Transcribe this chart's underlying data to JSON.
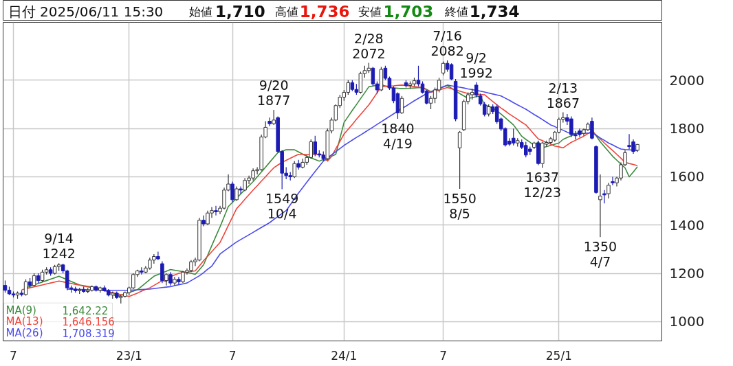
{
  "chart_data": {
    "type": "candlestick",
    "categories": [
      null,
      null,
      "7",
      null,
      null,
      null,
      null,
      null,
      null,
      null,
      null,
      null,
      null,
      null,
      null,
      null,
      null,
      null,
      null,
      null,
      null,
      null,
      null,
      null,
      null,
      null,
      null,
      null,
      null,
      null,
      "23/1",
      null,
      null,
      null,
      null,
      null,
      null,
      null,
      null,
      null,
      null,
      null,
      null,
      null,
      null,
      null,
      null,
      null,
      null,
      null,
      null,
      null,
      null,
      null,
      null,
      "7",
      null,
      null,
      null,
      null,
      null,
      null,
      null,
      null,
      null,
      null,
      null,
      null,
      null,
      null,
      null,
      null,
      null,
      null,
      null,
      null,
      null,
      null,
      null,
      null,
      null,
      null,
      "24/1",
      null,
      null,
      null,
      null,
      null,
      null,
      null,
      null,
      null,
      null,
      null,
      null,
      null,
      null,
      null,
      null,
      null,
      null,
      null,
      null,
      null,
      null,
      null,
      "7",
      null,
      null,
      null,
      null,
      null,
      null,
      null,
      null,
      null,
      null,
      null,
      null,
      null,
      null,
      null,
      null,
      null,
      null,
      null,
      null,
      null,
      null,
      null,
      null,
      null,
      null,
      null,
      "25/1",
      null,
      null,
      null,
      null,
      null,
      null,
      null,
      null,
      null,
      null,
      null,
      null,
      null,
      null,
      null,
      null,
      null,
      null,
      null
    ],
    "ohlc": [
      [
        1150,
        1170,
        1120,
        1130
      ],
      [
        1130,
        1145,
        1110,
        1115
      ],
      [
        1115,
        1125,
        1100,
        1110
      ],
      [
        1110,
        1125,
        1095,
        1118
      ],
      [
        1118,
        1130,
        1105,
        1112
      ],
      [
        1112,
        1175,
        1108,
        1165
      ],
      [
        1165,
        1180,
        1140,
        1150
      ],
      [
        1150,
        1200,
        1145,
        1190
      ],
      [
        1190,
        1200,
        1160,
        1170
      ],
      [
        1170,
        1215,
        1165,
        1205
      ],
      [
        1205,
        1225,
        1195,
        1215
      ],
      [
        1215,
        1225,
        1190,
        1200
      ],
      [
        1200,
        1235,
        1195,
        1228
      ],
      [
        1228,
        1242,
        1210,
        1235
      ],
      [
        1235,
        1240,
        1200,
        1210
      ],
      [
        1210,
        1215,
        1130,
        1140
      ],
      [
        1140,
        1150,
        1120,
        1135
      ],
      [
        1135,
        1145,
        1120,
        1128
      ],
      [
        1128,
        1140,
        1115,
        1132
      ],
      [
        1132,
        1145,
        1120,
        1125
      ],
      [
        1125,
        1140,
        1118,
        1130
      ],
      [
        1130,
        1150,
        1125,
        1145
      ],
      [
        1145,
        1150,
        1125,
        1130
      ],
      [
        1130,
        1145,
        1120,
        1140
      ],
      [
        1140,
        1150,
        1125,
        1128
      ],
      [
        1128,
        1135,
        1105,
        1110
      ],
      [
        1110,
        1125,
        1095,
        1118
      ],
      [
        1118,
        1125,
        1095,
        1100
      ],
      [
        1100,
        1110,
        1075,
        1105
      ],
      [
        1105,
        1125,
        1100,
        1120
      ],
      [
        1120,
        1145,
        1110,
        1140
      ],
      [
        1140,
        1200,
        1135,
        1195
      ],
      [
        1195,
        1215,
        1185,
        1210
      ],
      [
        1210,
        1225,
        1195,
        1205
      ],
      [
        1205,
        1230,
        1200,
        1222
      ],
      [
        1222,
        1265,
        1215,
        1255
      ],
      [
        1255,
        1280,
        1240,
        1270
      ],
      [
        1270,
        1290,
        1255,
        1260
      ],
      [
        1240,
        1250,
        1160,
        1170
      ],
      [
        1170,
        1200,
        1150,
        1195
      ],
      [
        1195,
        1205,
        1150,
        1160
      ],
      [
        1160,
        1185,
        1150,
        1175
      ],
      [
        1175,
        1185,
        1155,
        1165
      ],
      [
        1165,
        1210,
        1160,
        1205
      ],
      [
        1205,
        1220,
        1195,
        1212
      ],
      [
        1212,
        1255,
        1205,
        1248
      ],
      [
        1248,
        1265,
        1230,
        1255
      ],
      [
        1255,
        1430,
        1250,
        1420
      ],
      [
        1420,
        1440,
        1395,
        1405
      ],
      [
        1405,
        1460,
        1400,
        1450
      ],
      [
        1450,
        1475,
        1430,
        1460
      ],
      [
        1460,
        1480,
        1440,
        1455
      ],
      [
        1455,
        1480,
        1445,
        1470
      ],
      [
        1470,
        1555,
        1465,
        1545
      ],
      [
        1545,
        1610,
        1540,
        1570
      ],
      [
        1570,
        1580,
        1495,
        1505
      ],
      [
        1505,
        1560,
        1500,
        1550
      ],
      [
        1550,
        1560,
        1530,
        1545
      ],
      [
        1545,
        1595,
        1540,
        1585
      ],
      [
        1585,
        1605,
        1570,
        1595
      ],
      [
        1595,
        1635,
        1585,
        1625
      ],
      [
        1625,
        1640,
        1610,
        1630
      ],
      [
        1630,
        1775,
        1625,
        1765
      ],
      [
        1765,
        1830,
        1760,
        1805
      ],
      [
        1830,
        1845,
        1810,
        1820
      ],
      [
        1820,
        1877,
        1815,
        1835
      ],
      [
        1845,
        1850,
        1700,
        1705
      ],
      [
        1705,
        1710,
        1549,
        1615
      ],
      [
        1615,
        1640,
        1590,
        1605
      ],
      [
        1605,
        1620,
        1585,
        1600
      ],
      [
        1600,
        1665,
        1595,
        1655
      ],
      [
        1655,
        1670,
        1630,
        1640
      ],
      [
        1640,
        1675,
        1635,
        1660
      ],
      [
        1660,
        1690,
        1650,
        1680
      ],
      [
        1680,
        1755,
        1675,
        1745
      ],
      [
        1745,
        1770,
        1685,
        1695
      ],
      [
        1695,
        1710,
        1680,
        1690
      ],
      [
        1690,
        1705,
        1665,
        1675
      ],
      [
        1675,
        1800,
        1670,
        1790
      ],
      [
        1790,
        1845,
        1780,
        1835
      ],
      [
        1835,
        1900,
        1830,
        1895
      ],
      [
        1895,
        1940,
        1885,
        1930
      ],
      [
        1930,
        1960,
        1915,
        1950
      ],
      [
        1950,
        2000,
        1940,
        1990
      ],
      [
        1990,
        2000,
        1955,
        1962
      ],
      [
        1962,
        1985,
        1940,
        1950
      ],
      [
        1950,
        2035,
        1945,
        2028
      ],
      [
        2028,
        2060,
        2010,
        2040
      ],
      [
        2040,
        2072,
        2030,
        2050
      ],
      [
        2050,
        2055,
        1975,
        1985
      ],
      [
        1985,
        1995,
        1945,
        1960
      ],
      [
        1960,
        2055,
        1955,
        2045
      ],
      [
        2050,
        2060,
        2000,
        2008
      ],
      [
        2008,
        2015,
        1960,
        1968
      ],
      [
        1968,
        1975,
        1905,
        1915
      ],
      [
        1945,
        1950,
        1840,
        1865
      ],
      [
        1865,
        1935,
        1860,
        1925
      ],
      [
        1990,
        2000,
        1970,
        1978
      ],
      [
        1978,
        1995,
        1965,
        1985
      ],
      [
        1985,
        2010,
        1975,
        1998
      ],
      [
        2000,
        2060,
        1975,
        1985
      ],
      [
        1985,
        1995,
        1945,
        1950
      ],
      [
        1955,
        1960,
        1900,
        1905
      ],
      [
        1905,
        1935,
        1880,
        1925
      ],
      [
        1925,
        1970,
        1905,
        1960
      ],
      [
        1960,
        2010,
        1950,
        2000
      ],
      [
        2030,
        2078,
        2020,
        2070
      ],
      [
        2070,
        2082,
        2035,
        2045
      ],
      [
        2065,
        2070,
        2000,
        2005
      ],
      [
        1995,
        2005,
        1830,
        1840
      ],
      [
        1720,
        1790,
        1550,
        1785
      ],
      [
        1795,
        1920,
        1790,
        1912
      ],
      [
        1912,
        1950,
        1900,
        1940
      ],
      [
        1940,
        1965,
        1920,
        1950
      ],
      [
        1980,
        1992,
        1930,
        1938
      ],
      [
        1935,
        1945,
        1895,
        1902
      ],
      [
        1900,
        1910,
        1850,
        1858
      ],
      [
        1860,
        1900,
        1850,
        1890
      ],
      [
        1890,
        1900,
        1860,
        1870
      ],
      [
        1890,
        1900,
        1820,
        1828
      ],
      [
        1840,
        1845,
        1790,
        1798
      ],
      [
        1800,
        1805,
        1725,
        1732
      ],
      [
        1748,
        1760,
        1728,
        1735
      ],
      [
        1760,
        1800,
        1730,
        1740
      ],
      [
        1740,
        1760,
        1725,
        1750
      ],
      [
        1742,
        1755,
        1715,
        1722
      ],
      [
        1730,
        1745,
        1680,
        1690
      ],
      [
        1715,
        1725,
        1690,
        1705
      ],
      [
        1722,
        1745,
        1715,
        1740
      ],
      [
        1740,
        1750,
        1648,
        1655
      ],
      [
        1655,
        1745,
        1637,
        1740
      ],
      [
        1735,
        1750,
        1725,
        1742
      ],
      [
        1742,
        1765,
        1735,
        1758
      ],
      [
        1752,
        1790,
        1745,
        1785
      ],
      [
        1785,
        1845,
        1780,
        1838
      ],
      [
        1838,
        1867,
        1825,
        1845
      ],
      [
        1845,
        1860,
        1815,
        1830
      ],
      [
        1840,
        1850,
        1765,
        1775
      ],
      [
        1775,
        1790,
        1755,
        1770
      ],
      [
        1790,
        1800,
        1765,
        1775
      ],
      [
        1780,
        1800,
        1770,
        1795
      ],
      [
        1795,
        1825,
        1790,
        1818
      ],
      [
        1830,
        1845,
        1755,
        1760
      ],
      [
        1725,
        1730,
        1530,
        1535
      ],
      [
        1505,
        1610,
        1350,
        1520
      ],
      [
        1530,
        1545,
        1490,
        1525
      ],
      [
        1530,
        1575,
        1510,
        1565
      ],
      [
        1580,
        1600,
        1565,
        1575
      ],
      [
        1575,
        1600,
        1560,
        1595
      ],
      [
        1595,
        1660,
        1585,
        1650
      ],
      [
        1650,
        1710,
        1645,
        1700
      ],
      [
        1730,
        1777,
        1715,
        1725
      ],
      [
        1745,
        1755,
        1695,
        1705
      ],
      [
        1710,
        1736,
        1703,
        1734
      ]
    ],
    "series": [
      {
        "name": "MA(9)",
        "type": "line",
        "color": "#3a8a3a",
        "values": [
          null,
          null,
          null,
          null,
          null,
          1140,
          1146,
          1152,
          1158,
          1164,
          1170,
          1176,
          1182,
          1188,
          1181,
          1174,
          1166,
          1159,
          1152,
          1149,
          1146,
          1143,
          1140,
          1138,
          1135,
          1125,
          1114,
          1104,
          1110,
          1115,
          1121,
          1126,
          1132,
          1146,
          1160,
          1174,
          1188,
          1195,
          1202,
          1209,
          1216,
          1213,
          1210,
          1207,
          1203,
          1200,
          1196,
          1215,
          1235,
          1275,
          1315,
          1354,
          1393,
          1435,
          1477,
          1494,
          1511,
          1529,
          1546,
          1563,
          1580,
          1600,
          1620,
          1640,
          1660,
          1680,
          1700,
          1706,
          1712,
          1712,
          1712,
          1703,
          1694,
          1685,
          1678,
          1672,
          1665,
          1672,
          1668,
          1685,
          1693,
          1759,
          1825,
          1850,
          1875,
          1899,
          1924,
          1948,
          1973,
          1976,
          1979,
          1982,
          1976,
          1970,
          1968,
          1967,
          1965,
          1966,
          1967,
          1968,
          1969,
          1970,
          1962,
          1953,
          1959,
          1965,
          1972,
          1978,
          1967,
          1955,
          1945,
          1935,
          1925,
          1928,
          1932,
          1935,
          1898,
          1892,
          1885,
          1873,
          1860,
          1845,
          1830,
          1815,
          1792,
          1768,
          1755,
          1743,
          1730,
          1745,
          1720,
          1725,
          1730,
          1735,
          1740,
          1755,
          1763,
          1770,
          1778,
          1785,
          1793,
          1800,
          1795,
          1770,
          1745,
          1725,
          1705,
          1685,
          1669,
          1653,
          1637,
          1600,
          1620,
          1642
        ]
      },
      {
        "name": "MA(13)",
        "type": "line",
        "color": "#f0443a",
        "values": [
          null,
          null,
          null,
          null,
          1132,
          1136,
          1140,
          1144,
          1148,
          1152,
          1156,
          1160,
          1164,
          1168,
          1165,
          1161,
          1158,
          1154,
          1151,
          1147,
          1144,
          1140,
          1136,
          1132,
          1128,
          1124,
          1120,
          1116,
          1112,
          1108,
          1104,
          1111,
          1118,
          1126,
          1133,
          1140,
          1150,
          1160,
          1170,
          1166,
          1187,
          1193,
          1200,
          1203,
          1205,
          1208,
          1210,
          1231,
          1252,
          1271,
          1290,
          1309,
          1328,
          1363,
          1398,
          1433,
          1468,
          1487,
          1507,
          1526,
          1545,
          1563,
          1582,
          1600,
          1619,
          1637,
          1649,
          1660,
          1668,
          1677,
          1685,
          1693,
          1693,
          1693,
          1693,
          1693,
          1693,
          1690,
          1665,
          1685,
          1716,
          1746,
          1777,
          1797,
          1817,
          1838,
          1858,
          1878,
          1898,
          1923,
          1948,
          1973,
          1975,
          1976,
          1977,
          1979,
          1980,
          1978,
          1976,
          1974,
          1972,
          1970,
          1960,
          1950,
          1955,
          1960,
          1965,
          1970,
          1965,
          1960,
          1955,
          1950,
          1945,
          1944,
          1943,
          1941,
          1940,
          1926,
          1912,
          1898,
          1885,
          1873,
          1860,
          1849,
          1838,
          1826,
          1815,
          1796,
          1776,
          1757,
          1750,
          1742,
          1735,
          1727,
          1724,
          1720,
          1732,
          1743,
          1751,
          1760,
          1768,
          1779,
          1790,
          1773,
          1757,
          1740,
          1724,
          1709,
          1693,
          1677,
          1660,
          1655,
          1651,
          1646
        ]
      },
      {
        "name": "MA(26)",
        "type": "line",
        "color": "#4a4af0",
        "values": [
          null,
          null,
          null,
          null,
          null,
          null,
          null,
          null,
          null,
          null,
          null,
          null,
          null,
          null,
          null,
          1135,
          1134,
          1134,
          1133,
          1133,
          1132,
          1132,
          1131,
          1131,
          1130,
          1130,
          1130,
          1130,
          1130,
          1130,
          1130,
          1131,
          1132,
          1133,
          1134,
          1135,
          1137,
          1139,
          1141,
          1143,
          1145,
          1149,
          1153,
          1156,
          1160,
          1170,
          1180,
          1190,
          1203,
          1217,
          1230,
          1255,
          1280,
          1293,
          1305,
          1318,
          1330,
          1340,
          1350,
          1360,
          1370,
          1380,
          1390,
          1400,
          1410,
          1423,
          1435,
          1448,
          1460,
          1484,
          1509,
          1533,
          1555,
          1578,
          1600,
          1622,
          1643,
          1665,
          1678,
          1691,
          1704,
          1717,
          1730,
          1741,
          1752,
          1763,
          1773,
          1784,
          1795,
          1806,
          1817,
          1828,
          1839,
          1850,
          1861,
          1872,
          1883,
          1893,
          1904,
          1915,
          1925,
          1935,
          1945,
          1952,
          1959,
          1966,
          1973,
          1980,
          1977,
          1974,
          1971,
          1968,
          1964,
          1961,
          1958,
          1955,
          1951,
          1947,
          1943,
          1939,
          1935,
          1926,
          1917,
          1907,
          1898,
          1889,
          1880,
          1869,
          1858,
          1848,
          1837,
          1826,
          1815,
          1808,
          1800,
          1793,
          1785,
          1778,
          1779,
          1780,
          1780,
          1781,
          1782,
          1772,
          1761,
          1751,
          1740,
          1732,
          1723,
          1715,
          1713,
          1712,
          1710,
          1708
        ]
      }
    ],
    "ylim": [
      920,
      2240
    ],
    "yticks": [
      1000,
      1200,
      1400,
      1600,
      1800,
      2000
    ],
    "grid": true,
    "legend": "bottom left",
    "annotations": [
      "日付 2025/06/11 15:30",
      "始値",
      "1,710",
      "高値",
      "1,736",
      "安値",
      "1,703",
      "終値",
      "1,734",
      "1,642.22",
      "1,646.156",
      "1,708.319",
      {
        "text": "9/14\n1242",
        "y": 1242
      },
      {
        "text": "9/20\n1877",
        "y": 1877
      },
      {
        "text": "1549\n10/4",
        "y": 1549
      },
      {
        "text": "2/28\n2072",
        "y": 2072
      },
      {
        "text": "1840\n4/19",
        "y": 1840
      },
      {
        "text": "7/16\n2082",
        "y": 2082
      },
      {
        "text": "1550\n8/5",
        "y": 1550
      },
      {
        "text": "9/2\n1992",
        "y": 1992
      },
      {
        "text": "1637\n12/23",
        "y": 1637
      },
      {
        "text": "2/13\n1867",
        "y": 1867
      },
      {
        "text": "1350\n4/7",
        "y": 1350
      }
    ]
  }
}
